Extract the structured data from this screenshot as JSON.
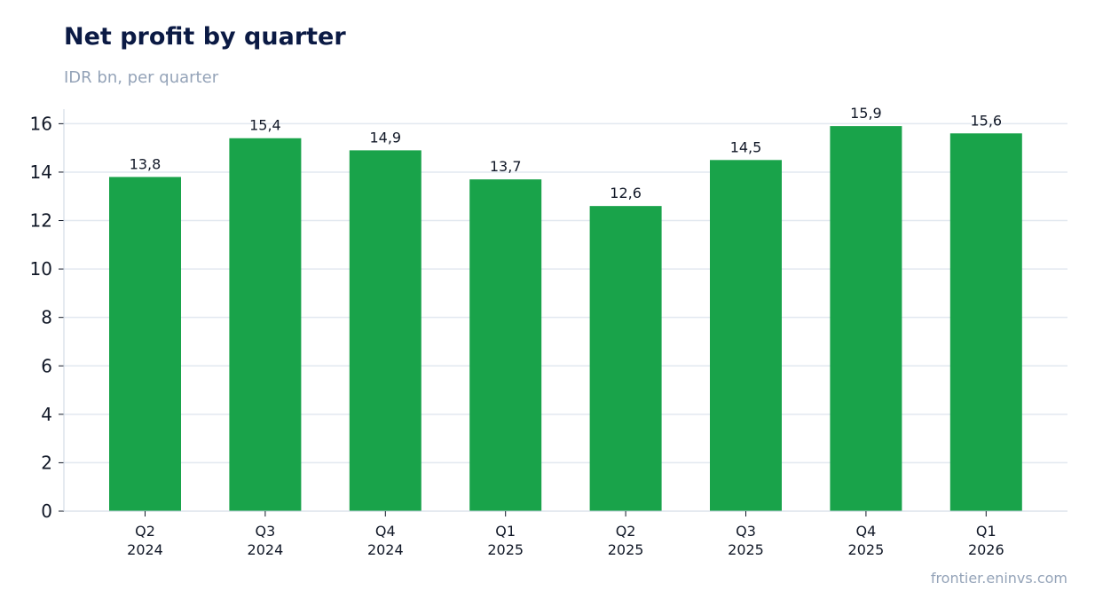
{
  "header": {
    "title": "Net profit by quarter",
    "subtitle": "IDR bn, per quarter"
  },
  "footer": {
    "source": "frontier.eninvs.com"
  },
  "colors": {
    "bar": "#19a34a",
    "grid": "#e2e8f0",
    "axis": "#cbd5e1"
  },
  "chart_data": {
    "type": "bar",
    "title": "Net profit by quarter",
    "subtitle": "IDR bn, per quarter",
    "xlabel": "",
    "ylabel": "",
    "categories": [
      [
        "Q2",
        "2024"
      ],
      [
        "Q3",
        "2024"
      ],
      [
        "Q4",
        "2024"
      ],
      [
        "Q1",
        "2025"
      ],
      [
        "Q2",
        "2025"
      ],
      [
        "Q3",
        "2025"
      ],
      [
        "Q4",
        "2025"
      ],
      [
        "Q1",
        "2026"
      ]
    ],
    "values": [
      13.8,
      15.4,
      14.9,
      13.7,
      12.6,
      14.5,
      15.9,
      15.6
    ],
    "value_labels": [
      "13,8",
      "15,4",
      "14,9",
      "13,7",
      "12,6",
      "14,5",
      "15,9",
      "15,6"
    ],
    "ylim": [
      0,
      16.6
    ],
    "yticks": [
      0,
      2,
      4,
      6,
      8,
      10,
      12,
      14,
      16
    ],
    "grid": true,
    "legend": "none"
  }
}
